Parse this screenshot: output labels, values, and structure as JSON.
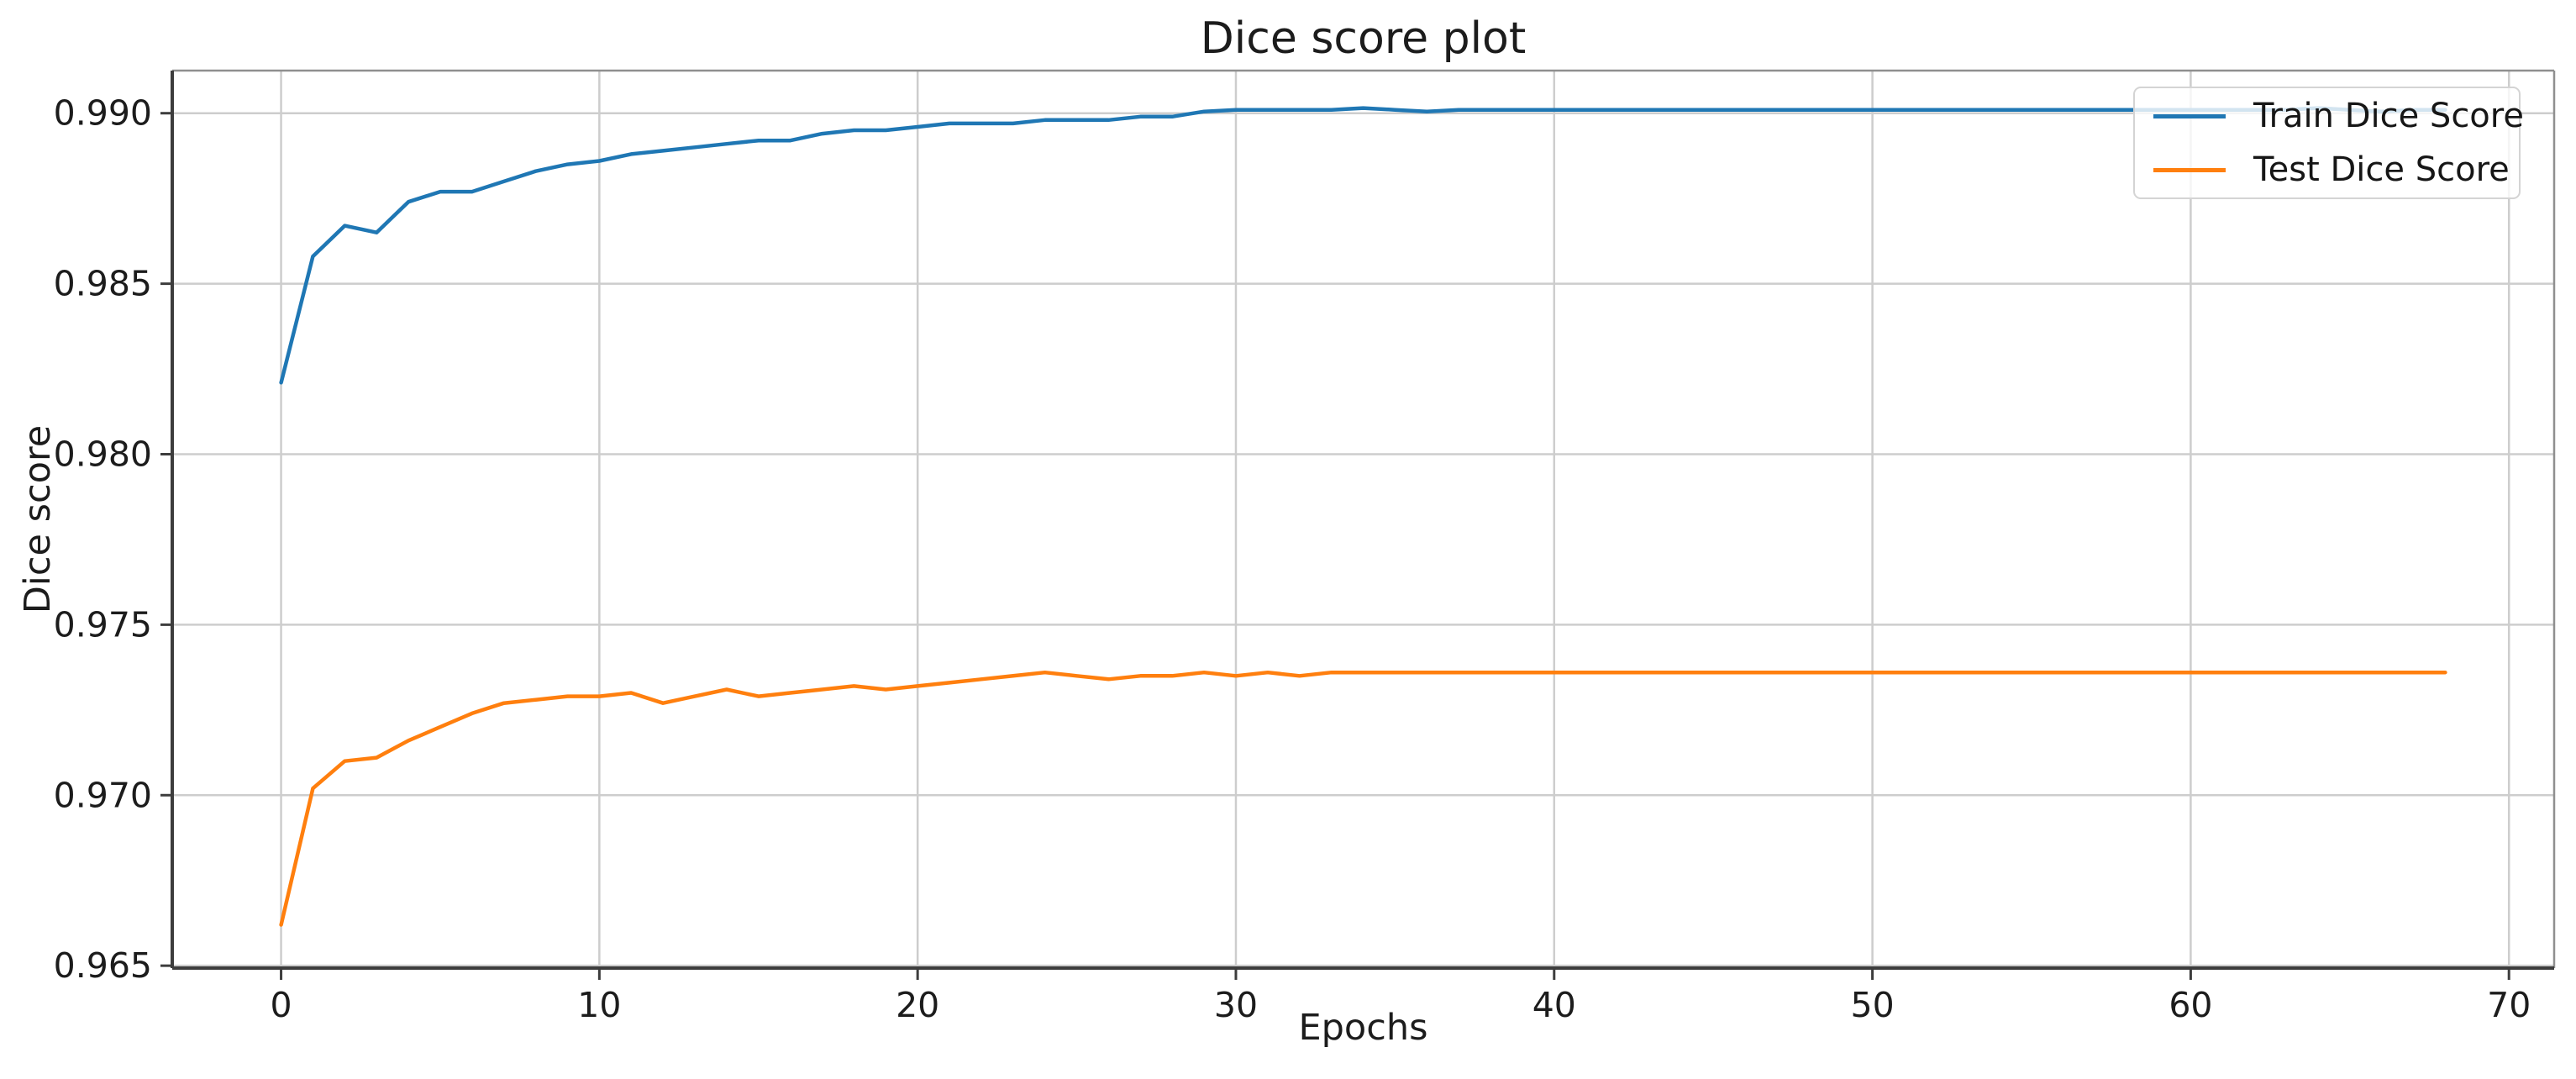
{
  "chart_data": {
    "type": "line",
    "title": "Dice score plot",
    "xlabel": "Epochs",
    "ylabel": "Dice score",
    "grid": true,
    "legend_position": "upper right",
    "xlim": [
      -3.42,
      71.42
    ],
    "ylim": [
      0.96493,
      0.99125
    ],
    "xticks": [
      0,
      10,
      20,
      30,
      40,
      50,
      60,
      70
    ],
    "yticks": [
      0.965,
      0.97,
      0.975,
      0.98,
      0.985,
      0.99
    ],
    "ytick_labels": [
      "0.965",
      "0.970",
      "0.975",
      "0.980",
      "0.985",
      "0.990"
    ],
    "x": [
      0,
      1,
      2,
      3,
      4,
      5,
      6,
      7,
      8,
      9,
      10,
      11,
      12,
      13,
      14,
      15,
      16,
      17,
      18,
      19,
      20,
      21,
      22,
      23,
      24,
      25,
      26,
      27,
      28,
      29,
      30,
      31,
      32,
      33,
      34,
      35,
      36,
      37,
      38,
      39,
      40,
      41,
      42,
      43,
      44,
      45,
      46,
      47,
      48,
      49,
      50,
      51,
      52,
      53,
      54,
      55,
      56,
      57,
      58,
      59,
      60,
      61,
      62,
      63,
      64,
      65,
      66,
      67,
      68
    ],
    "series": [
      {
        "name": "Train Dice Score",
        "color": "#1f77b4",
        "values": [
          0.9821,
          0.9858,
          0.9867,
          0.9865,
          0.9874,
          0.9877,
          0.9877,
          0.988,
          0.9883,
          0.9885,
          0.9886,
          0.9888,
          0.9889,
          0.989,
          0.9891,
          0.9892,
          0.9892,
          0.9894,
          0.9895,
          0.9895,
          0.9896,
          0.9897,
          0.9897,
          0.9897,
          0.9898,
          0.9898,
          0.9898,
          0.9899,
          0.9899,
          0.99005,
          0.9901,
          0.9901,
          0.9901,
          0.9901,
          0.99015,
          0.9901,
          0.99005,
          0.9901,
          0.9901,
          0.9901,
          0.9901,
          0.9901,
          0.9901,
          0.9901,
          0.9901,
          0.9901,
          0.9901,
          0.9901,
          0.9901,
          0.9901,
          0.9901,
          0.9901,
          0.9901,
          0.9901,
          0.9901,
          0.9901,
          0.9901,
          0.9901,
          0.9901,
          0.9901,
          0.9901,
          0.9901,
          0.9901,
          0.9901,
          0.99015,
          0.9901,
          0.99005,
          0.9901,
          0.9901
        ]
      },
      {
        "name": "Test Dice Score",
        "color": "#ff7f0e",
        "values": [
          0.9662,
          0.9702,
          0.971,
          0.9711,
          0.9716,
          0.972,
          0.9724,
          0.9727,
          0.9728,
          0.9729,
          0.9729,
          0.973,
          0.9727,
          0.9729,
          0.9731,
          0.9729,
          0.973,
          0.9731,
          0.9732,
          0.9731,
          0.9732,
          0.9733,
          0.9734,
          0.9735,
          0.9736,
          0.9735,
          0.9734,
          0.9735,
          0.9735,
          0.9736,
          0.9735,
          0.9736,
          0.9735,
          0.9736,
          0.9736,
          0.9736,
          0.9736,
          0.9736,
          0.9736,
          0.9736,
          0.9736,
          0.9736,
          0.9736,
          0.9736,
          0.9736,
          0.9736,
          0.9736,
          0.9736,
          0.9736,
          0.9736,
          0.9736,
          0.9736,
          0.9736,
          0.9736,
          0.9736,
          0.9736,
          0.9736,
          0.9736,
          0.9736,
          0.9736,
          0.9736,
          0.9736,
          0.9736,
          0.9736,
          0.9736,
          0.9736,
          0.9736,
          0.9736,
          0.9736
        ]
      }
    ]
  },
  "colors": {
    "train_line": "#1f77b4",
    "test_line": "#ff7f0e",
    "gridline": "#cdcdcd",
    "text": "#1c1c1c"
  }
}
